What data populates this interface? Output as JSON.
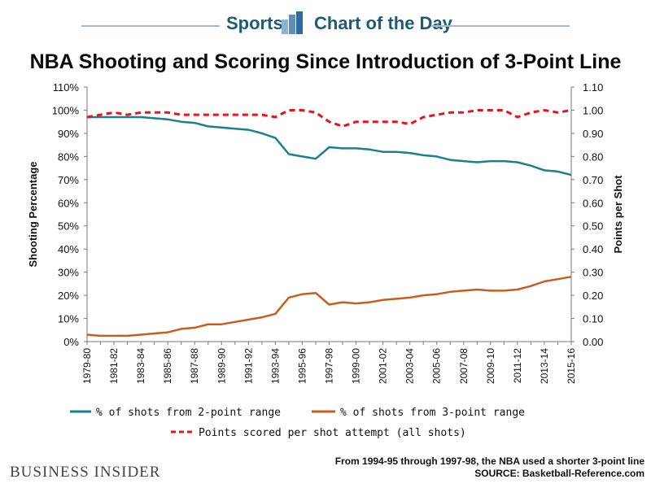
{
  "banner": {
    "left": "Sports",
    "right": "Chart of the Day"
  },
  "brand": "BUSINESS INSIDER",
  "footnote": "From 1994-95 through 1997-98, the NBA used a shorter 3-point line",
  "source": "SOURCE: Basketball-Reference.com",
  "colors": {
    "two_point": "#1a7f94",
    "three_point": "#c95d1c",
    "points": "#e8141c",
    "banner": "#1e5b7b"
  },
  "chart_data": {
    "type": "line",
    "title": "NBA Shooting and Scoring Since Introduction of 3-Point Line",
    "ylabel": "Shooting Percentage",
    "y2label": "Points per Shot",
    "ylim": [
      0,
      110
    ],
    "y2lim": [
      0.0,
      1.1
    ],
    "y_ticks": [
      "0%",
      "10%",
      "20%",
      "30%",
      "40%",
      "50%",
      "60%",
      "70%",
      "80%",
      "90%",
      "100%",
      "110%"
    ],
    "y2_ticks": [
      "0.00",
      "0.10",
      "0.20",
      "0.30",
      "0.40",
      "0.50",
      "0.60",
      "0.70",
      "0.80",
      "0.90",
      "1.00",
      "1.10"
    ],
    "x": [
      "1979-80",
      "1980-81",
      "1981-82",
      "1982-83",
      "1983-84",
      "1984-85",
      "1985-86",
      "1986-87",
      "1987-88",
      "1988-89",
      "1989-90",
      "1990-91",
      "1991-92",
      "1992-93",
      "1993-94",
      "1994-95",
      "1995-96",
      "1996-97",
      "1997-98",
      "1998-99",
      "1999-00",
      "2000-01",
      "2001-02",
      "2002-03",
      "2003-04",
      "2004-05",
      "2005-06",
      "2006-07",
      "2007-08",
      "2008-09",
      "2009-10",
      "2010-11",
      "2011-12",
      "2012-13",
      "2013-14",
      "2014-15",
      "2015-16"
    ],
    "x_tick_labels": [
      "1979-80",
      "1981-82",
      "1983-84",
      "1985-86",
      "1987-88",
      "1989-90",
      "1991-92",
      "1993-94",
      "1995-96",
      "1997-98",
      "1999-00",
      "2001-02",
      "2003-04",
      "2005-06",
      "2007-08",
      "2009-10",
      "2011-12",
      "2013-14",
      "2015-16"
    ],
    "series": [
      {
        "name": "% of shots from 2-point range",
        "axis": "left",
        "style": "solid",
        "values": [
          97,
          97,
          97,
          97,
          97,
          96.5,
          96,
          95,
          94.5,
          93,
          92.5,
          92,
          91.5,
          90,
          88,
          81,
          80,
          79,
          84,
          83.5,
          83.5,
          83,
          82,
          82,
          81.5,
          80.5,
          80,
          78.5,
          78,
          77.5,
          78,
          78,
          77.5,
          76,
          74,
          73.5,
          72
        ]
      },
      {
        "name": "% of shots from 3-point range",
        "axis": "left",
        "style": "solid",
        "values": [
          3,
          2.5,
          2.5,
          2.5,
          3,
          3.5,
          4,
          5.5,
          6,
          7.5,
          7.5,
          8.5,
          9.5,
          10.5,
          12,
          19,
          20.5,
          21,
          16,
          17,
          16.5,
          17,
          18,
          18.5,
          19,
          20,
          20.5,
          21.5,
          22,
          22.5,
          22,
          22,
          22.5,
          24,
          26,
          27,
          28
        ]
      },
      {
        "name": "Points scored per shot attempt (all shots)",
        "axis": "right",
        "style": "dashed",
        "values": [
          0.97,
          0.98,
          0.99,
          0.98,
          0.99,
          0.99,
          0.99,
          0.98,
          0.98,
          0.98,
          0.98,
          0.98,
          0.98,
          0.98,
          0.97,
          1.0,
          1.0,
          0.99,
          0.95,
          0.93,
          0.95,
          0.95,
          0.95,
          0.95,
          0.94,
          0.97,
          0.98,
          0.99,
          0.99,
          1.0,
          1.0,
          1.0,
          0.97,
          0.99,
          1.0,
          0.99,
          1.0
        ]
      }
    ],
    "legend_placement": "bottom",
    "grid": false
  }
}
